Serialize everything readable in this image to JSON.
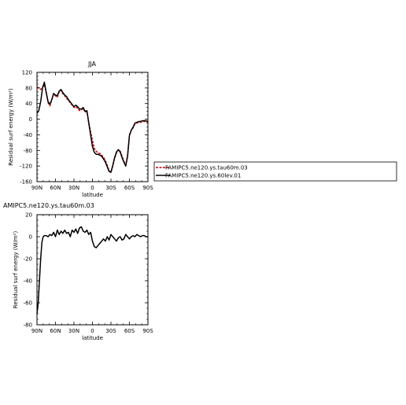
{
  "chart_data": [
    {
      "type": "line",
      "title": "JJA",
      "xlabel": "latitude",
      "ylabel": "Residual surf energy (W/m²)",
      "xlim": [
        90,
        -90
      ],
      "ylim": [
        -160,
        120
      ],
      "xticks": [
        90,
        60,
        30,
        0,
        -30,
        -60,
        -90
      ],
      "xtick_labels": [
        "90N",
        "60N",
        "30N",
        "0",
        "30S",
        "60S",
        "90S"
      ],
      "yticks": [
        -160,
        -120,
        -80,
        -40,
        0,
        40,
        80,
        120
      ],
      "ytick_labels": [
        "-160",
        "-120",
        "-80",
        "-40",
        "0",
        "40",
        "80",
        "120"
      ],
      "grid": false,
      "legend": {
        "placement": "right-outside"
      },
      "series": [
        {
          "name": "FAMIPC5.ne120.ys.tau60m.03",
          "color": "#cc0000",
          "dash": "dashed",
          "x": [
            90,
            87,
            84,
            81,
            78,
            75,
            72,
            69,
            66,
            63,
            60,
            57,
            54,
            51,
            48,
            45,
            42,
            39,
            36,
            33,
            30,
            27,
            24,
            21,
            18,
            15,
            12,
            9,
            6,
            3,
            0,
            -3,
            -6,
            -9,
            -12,
            -15,
            -18,
            -21,
            -24,
            -27,
            -30,
            -33,
            -36,
            -39,
            -42,
            -45,
            -48,
            -51,
            -54,
            -57,
            -60,
            -63,
            -66,
            -69,
            -72,
            -75,
            -78,
            -81,
            -84,
            -87,
            -90
          ],
          "y": [
            82,
            80,
            76,
            82,
            88,
            70,
            42,
            34,
            50,
            64,
            60,
            56,
            70,
            74,
            65,
            60,
            54,
            48,
            42,
            36,
            30,
            32,
            28,
            22,
            24,
            28,
            18,
            20,
            -8,
            -32,
            -55,
            -75,
            -82,
            -86,
            -88,
            -92,
            -98,
            -106,
            -118,
            -132,
            -136,
            -120,
            -100,
            -86,
            -78,
            -82,
            -95,
            -108,
            -118,
            -92,
            -40,
            -28,
            -22,
            -12,
            -10,
            -8,
            -8,
            -6,
            -6,
            -6,
            -8
          ]
        },
        {
          "name": "FAMIPC5.ne120.ys.60lev.01",
          "color": "#000000",
          "dash": "solid",
          "x": [
            90,
            87,
            84,
            81,
            78,
            75,
            72,
            69,
            66,
            63,
            60,
            57,
            54,
            51,
            48,
            45,
            42,
            39,
            36,
            33,
            30,
            27,
            24,
            21,
            18,
            15,
            12,
            9,
            6,
            3,
            0,
            -3,
            -6,
            -9,
            -12,
            -15,
            -18,
            -21,
            -24,
            -27,
            -30,
            -33,
            -36,
            -39,
            -42,
            -45,
            -48,
            -51,
            -54,
            -57,
            -60,
            -63,
            -66,
            -69,
            -72,
            -75,
            -78,
            -81,
            -84,
            -87,
            -90
          ],
          "y": [
            15,
            22,
            45,
            80,
            95,
            68,
            45,
            38,
            50,
            66,
            62,
            60,
            72,
            76,
            68,
            62,
            58,
            50,
            44,
            38,
            32,
            36,
            32,
            26,
            26,
            30,
            20,
            22,
            -10,
            -40,
            -70,
            -85,
            -90,
            -90,
            -92,
            -95,
            -102,
            -110,
            -122,
            -134,
            -136,
            -118,
            -98,
            -84,
            -78,
            -84,
            -98,
            -110,
            -120,
            -95,
            -42,
            -28,
            -20,
            -10,
            -8,
            -6,
            -6,
            -4,
            -4,
            -4,
            -6
          ]
        }
      ]
    },
    {
      "type": "line",
      "title": "AMIPC5.ne120.ys.tau60m.03",
      "xlabel": "latitude",
      "ylabel": "Residual surf energy (W/m²)",
      "xlim": [
        90,
        -90
      ],
      "ylim": [
        -80,
        20
      ],
      "xticks": [
        90,
        60,
        30,
        0,
        -30,
        -60,
        -90
      ],
      "xtick_labels": [
        "90N",
        "60N",
        "30N",
        "0",
        "30S",
        "60S",
        "90S"
      ],
      "yticks": [
        -80,
        -60,
        -40,
        -20,
        0,
        20
      ],
      "ytick_labels": [
        "-80",
        "-60",
        "-40",
        "-20",
        "0",
        "20"
      ],
      "grid": false,
      "series": [
        {
          "color": "#000000",
          "dash": "solid",
          "x": [
            90,
            88,
            86,
            84,
            82,
            80,
            78,
            75,
            72,
            69,
            66,
            63,
            60,
            57,
            54,
            51,
            48,
            45,
            42,
            39,
            36,
            33,
            30,
            27,
            24,
            21,
            18,
            15,
            12,
            9,
            6,
            3,
            0,
            -3,
            -6,
            -9,
            -12,
            -15,
            -18,
            -21,
            -24,
            -27,
            -30,
            -33,
            -36,
            -39,
            -42,
            -45,
            -48,
            -51,
            -54,
            -57,
            -60,
            -63,
            -66,
            -69,
            -72,
            -75,
            -78,
            -81,
            -84,
            -87,
            -90
          ],
          "y": [
            -70,
            -60,
            -40,
            -20,
            -5,
            0,
            1,
            1,
            0,
            2,
            1,
            4,
            0,
            6,
            2,
            5,
            3,
            6,
            3,
            4,
            0,
            6,
            4,
            7,
            3,
            8,
            9,
            5,
            4,
            6,
            2,
            4,
            -4,
            -9,
            -10,
            -8,
            -6,
            -4,
            -2,
            -4,
            0,
            -3,
            2,
            0,
            -2,
            -4,
            -1,
            0,
            -3,
            -2,
            2,
            0,
            -2,
            0,
            1,
            0,
            2,
            1,
            0,
            1,
            1,
            0,
            0
          ]
        }
      ]
    }
  ]
}
